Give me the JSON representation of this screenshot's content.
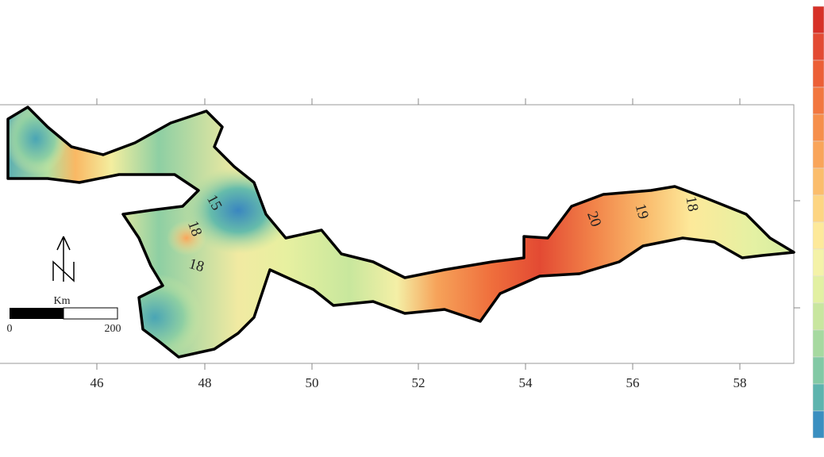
{
  "x_axis": {
    "tick_labels": [
      46,
      48,
      50,
      52,
      54,
      56,
      58
    ]
  },
  "contour_labels": [
    15,
    18,
    18,
    20,
    19,
    18
  ],
  "scale_bar": {
    "unit": "Km",
    "start": 0,
    "end": 200
  }
}
